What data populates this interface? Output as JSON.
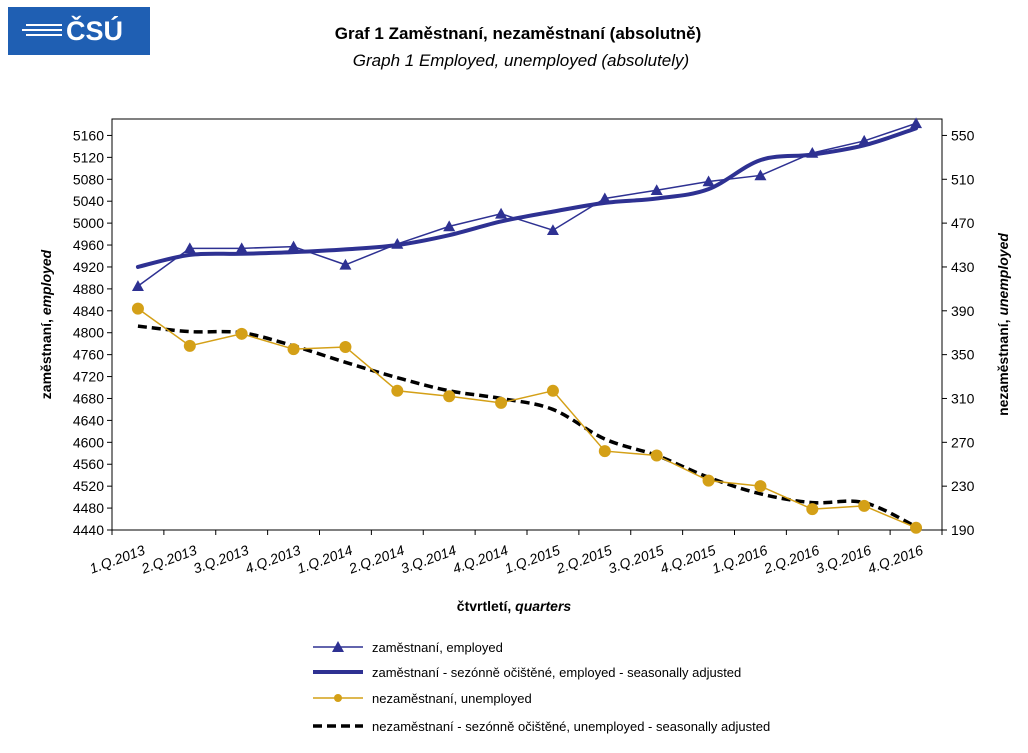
{
  "logo": {
    "text": "ČSÚ"
  },
  "header": {
    "title_cz": "Graf 1  Zaměstnaní, nezaměstnaní (absolutně)",
    "title_en": "Graph 1  Employed, unemployed (absolutely)"
  },
  "chart_data": {
    "type": "line",
    "categories": [
      "1.Q.2013",
      "2.Q.2013",
      "3.Q.2013",
      "4.Q.2013",
      "1.Q.2014",
      "2.Q.2014",
      "3.Q.2014",
      "4.Q.2014",
      "1.Q.2015",
      "2.Q.2015",
      "3.Q.2015",
      "4.Q.2015",
      "1.Q.2016",
      "2.Q.2016",
      "3.Q.2016",
      "4.Q.2016"
    ],
    "xlabel": {
      "cz": "čtvrtletí, ",
      "en": "quarters"
    },
    "ylabel_left": {
      "cz": "zaměstnaní, ",
      "en": "employed"
    },
    "ylabel_right": {
      "cz": "nezaměstnaní, ",
      "en": "unemployed"
    },
    "ylim_left": [
      4440,
      5190
    ],
    "yticks_left": [
      4440,
      4480,
      4520,
      4560,
      4600,
      4640,
      4680,
      4720,
      4760,
      4800,
      4840,
      4880,
      4920,
      4960,
      5000,
      5040,
      5080,
      5120,
      5160
    ],
    "ylim_right": [
      190,
      565
    ],
    "yticks_right": [
      190,
      230,
      270,
      310,
      350,
      390,
      430,
      470,
      510,
      550
    ],
    "series": [
      {
        "name": "zaměstnaní, employed",
        "axis": "left",
        "style": "line-triangle",
        "color": "#2e3192",
        "values": [
          4885,
          4954,
          4954,
          4957,
          4924,
          4962,
          4994,
          5017,
          4987,
          5045,
          5060,
          5076,
          5087,
          5128,
          5150,
          5182
        ]
      },
      {
        "name": "zaměstnaní - sezónně očištěné, employed - seasonally adjusted",
        "axis": "left",
        "style": "thick",
        "color": "#2e3192",
        "values": [
          4920,
          4942,
          4944,
          4947,
          4952,
          4960,
          4978,
          5003,
          5021,
          5037,
          5045,
          5062,
          5115,
          5125,
          5142,
          5173
        ]
      },
      {
        "name": "nezaměstnaní,  unemployed",
        "axis": "right",
        "style": "line-circle",
        "color": "#d4a017",
        "values": [
          392,
          358,
          369,
          355,
          357,
          317,
          312,
          306,
          317,
          262,
          258,
          235,
          230,
          209,
          212,
          192
        ]
      },
      {
        "name": "nezaměstnaní - sezónně očištěné,  unemployed - seasonally adjusted",
        "axis": "right",
        "style": "dashed",
        "color": "#000000",
        "values": [
          376,
          371,
          370,
          358,
          343,
          329,
          317,
          310,
          300,
          273,
          258,
          238,
          223,
          215,
          215,
          193
        ]
      }
    ]
  }
}
